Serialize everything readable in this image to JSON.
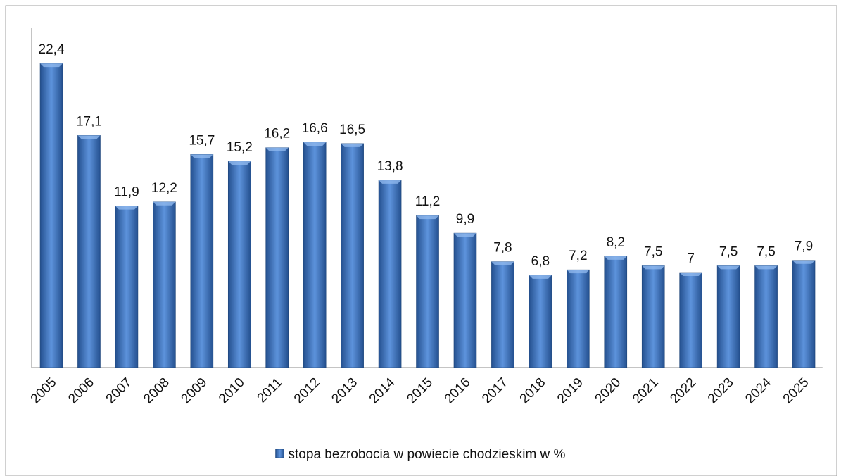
{
  "chart_data": {
    "type": "bar",
    "categories": [
      "2005",
      "2006",
      "2007",
      "2008",
      "2009",
      "2010",
      "2011",
      "2012",
      "2013",
      "2014",
      "2015",
      "2016",
      "2017",
      "2018",
      "2019",
      "2020",
      "2021",
      "2022",
      "2023",
      "2024",
      "2025"
    ],
    "series": [
      {
        "name": "stopa bezrobocia w powiecie chodzieskim w %",
        "color": "#3a6fbf",
        "values": [
          22.4,
          17.1,
          11.9,
          12.2,
          15.7,
          15.2,
          16.2,
          16.6,
          16.5,
          13.8,
          11.2,
          9.9,
          7.8,
          6.8,
          7.2,
          8.2,
          7.5,
          7,
          7.5,
          7.5,
          7.9
        ],
        "value_labels": [
          "22,4",
          "17,1",
          "11,9",
          "12,2",
          "15,7",
          "15,2",
          "16,2",
          "16,6",
          "16,5",
          "13,8",
          "11,2",
          "9,9",
          "7,8",
          "6,8",
          "7,2",
          "8,2",
          "7,5",
          "7",
          "7,5",
          "7,5",
          "7,9"
        ]
      }
    ],
    "ylim": [
      0,
      25
    ],
    "legend": "bottom"
  }
}
